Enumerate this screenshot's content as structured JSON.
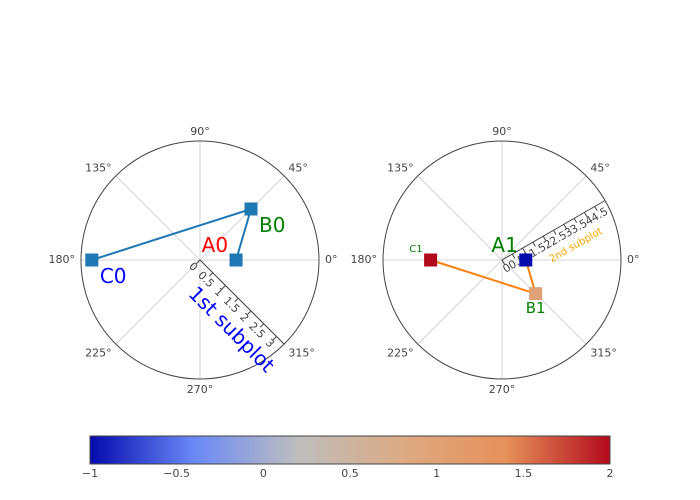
{
  "chart_data": [
    {
      "type": "scatter",
      "mode": "lines+markers+text",
      "subplot": "polar",
      "radial_range": [
        0,
        3.3
      ],
      "radial_ticks": [
        "0",
        "0.5",
        "1",
        "1.5",
        "2",
        "2.5",
        "3"
      ],
      "radial_title": "1st subplot",
      "radial_title_color": "#0000ff",
      "radial_axis_angle_deg": -45,
      "angular_ticks": [
        "0°",
        "45°",
        "90°",
        "135°",
        "180°",
        "225°",
        "270°",
        "315°"
      ],
      "grid": true,
      "series": [
        {
          "r": [
            1,
            2,
            3
          ],
          "theta": [
            0,
            45,
            180
          ],
          "text": [
            "A0",
            "B0",
            "C0"
          ],
          "text_colors": [
            "#ff0000",
            "#008000",
            "#0000ff"
          ],
          "text_positions": [
            "top left",
            "bottom right",
            "bottom right"
          ],
          "text_sizes": [
            20,
            20,
            20
          ],
          "line_color": "#1f77b4",
          "marker_color": "#1f77b4",
          "marker_symbol": "square"
        }
      ]
    },
    {
      "type": "scatter",
      "mode": "lines+markers+text",
      "subplot": "polar2",
      "radial_range": [
        0,
        5
      ],
      "radial_ticks": [
        "0",
        "0.5",
        "1",
        "1.5",
        "2",
        "2.5",
        "3",
        "3.5",
        "4",
        "4.5"
      ],
      "radial_title": "2nd subplot",
      "radial_title_color": "#ffa500",
      "radial_axis_angle_deg": 30,
      "angular_ticks": [
        "0°",
        "45°",
        "90°",
        "135°",
        "180°",
        "225°",
        "270°",
        "315°"
      ],
      "grid": true,
      "series": [
        {
          "r": [
            1,
            2,
            3
          ],
          "theta": [
            0,
            -45,
            180
          ],
          "text": [
            "A1",
            "B1",
            "C1"
          ],
          "text_colors": [
            "#008000",
            "#008000",
            "#008000"
          ],
          "text_positions": [
            "top left",
            "bottom center",
            "top left"
          ],
          "text_sizes": [
            20,
            15,
            10
          ],
          "line_color": "#ff7f0e",
          "marker_values": [
            -1,
            1,
            2
          ],
          "marker_colorscale": [
            "#050aac",
            "#6a89f7",
            "#bebebe",
            "#dcaa84",
            "#e6915a",
            "#b20a1c"
          ],
          "marker_symbol": "square"
        }
      ],
      "colorbar": {
        "orientation": "horizontal",
        "range": [
          -1,
          2
        ],
        "ticks": [
          "−1",
          "−0.5",
          "0",
          "0.5",
          "1",
          "1.5",
          "2"
        ],
        "tick_values": [
          -1,
          -0.5,
          0,
          0.5,
          1,
          1.5,
          2
        ],
        "colorscale": [
          "#050aac",
          "#6a89f7",
          "#bebebe",
          "#dcaa84",
          "#e6915a",
          "#b20a1c"
        ]
      }
    }
  ]
}
